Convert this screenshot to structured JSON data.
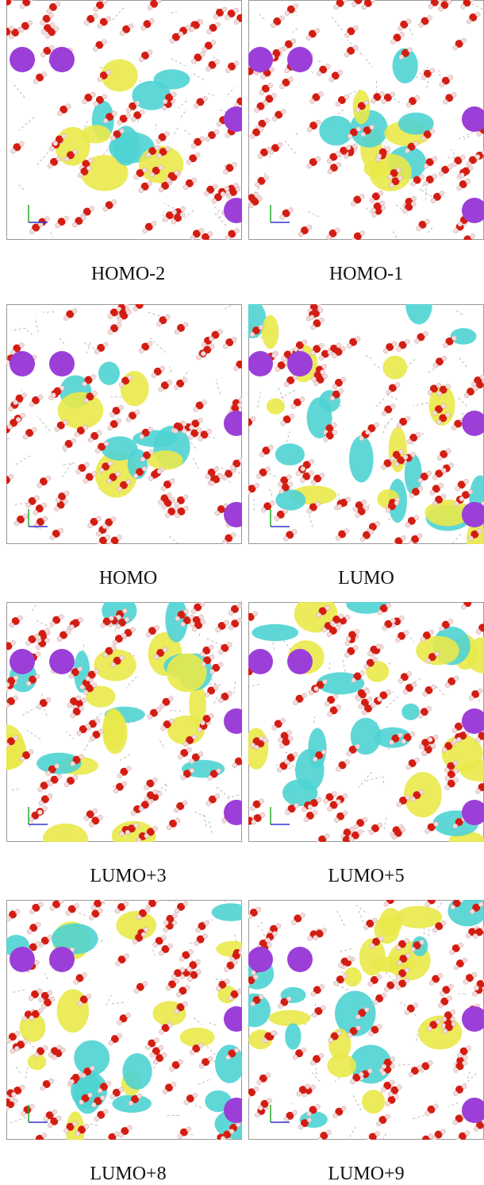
{
  "panels": [
    {
      "label": "HOMO-2"
    },
    {
      "label": "HOMO-1"
    },
    {
      "label": "HOMO"
    },
    {
      "label": "LUMO"
    },
    {
      "label": "LUMO+3"
    },
    {
      "label": "LUMO+5"
    },
    {
      "label": "LUMO+8"
    },
    {
      "label": "LUMO+9"
    }
  ]
}
